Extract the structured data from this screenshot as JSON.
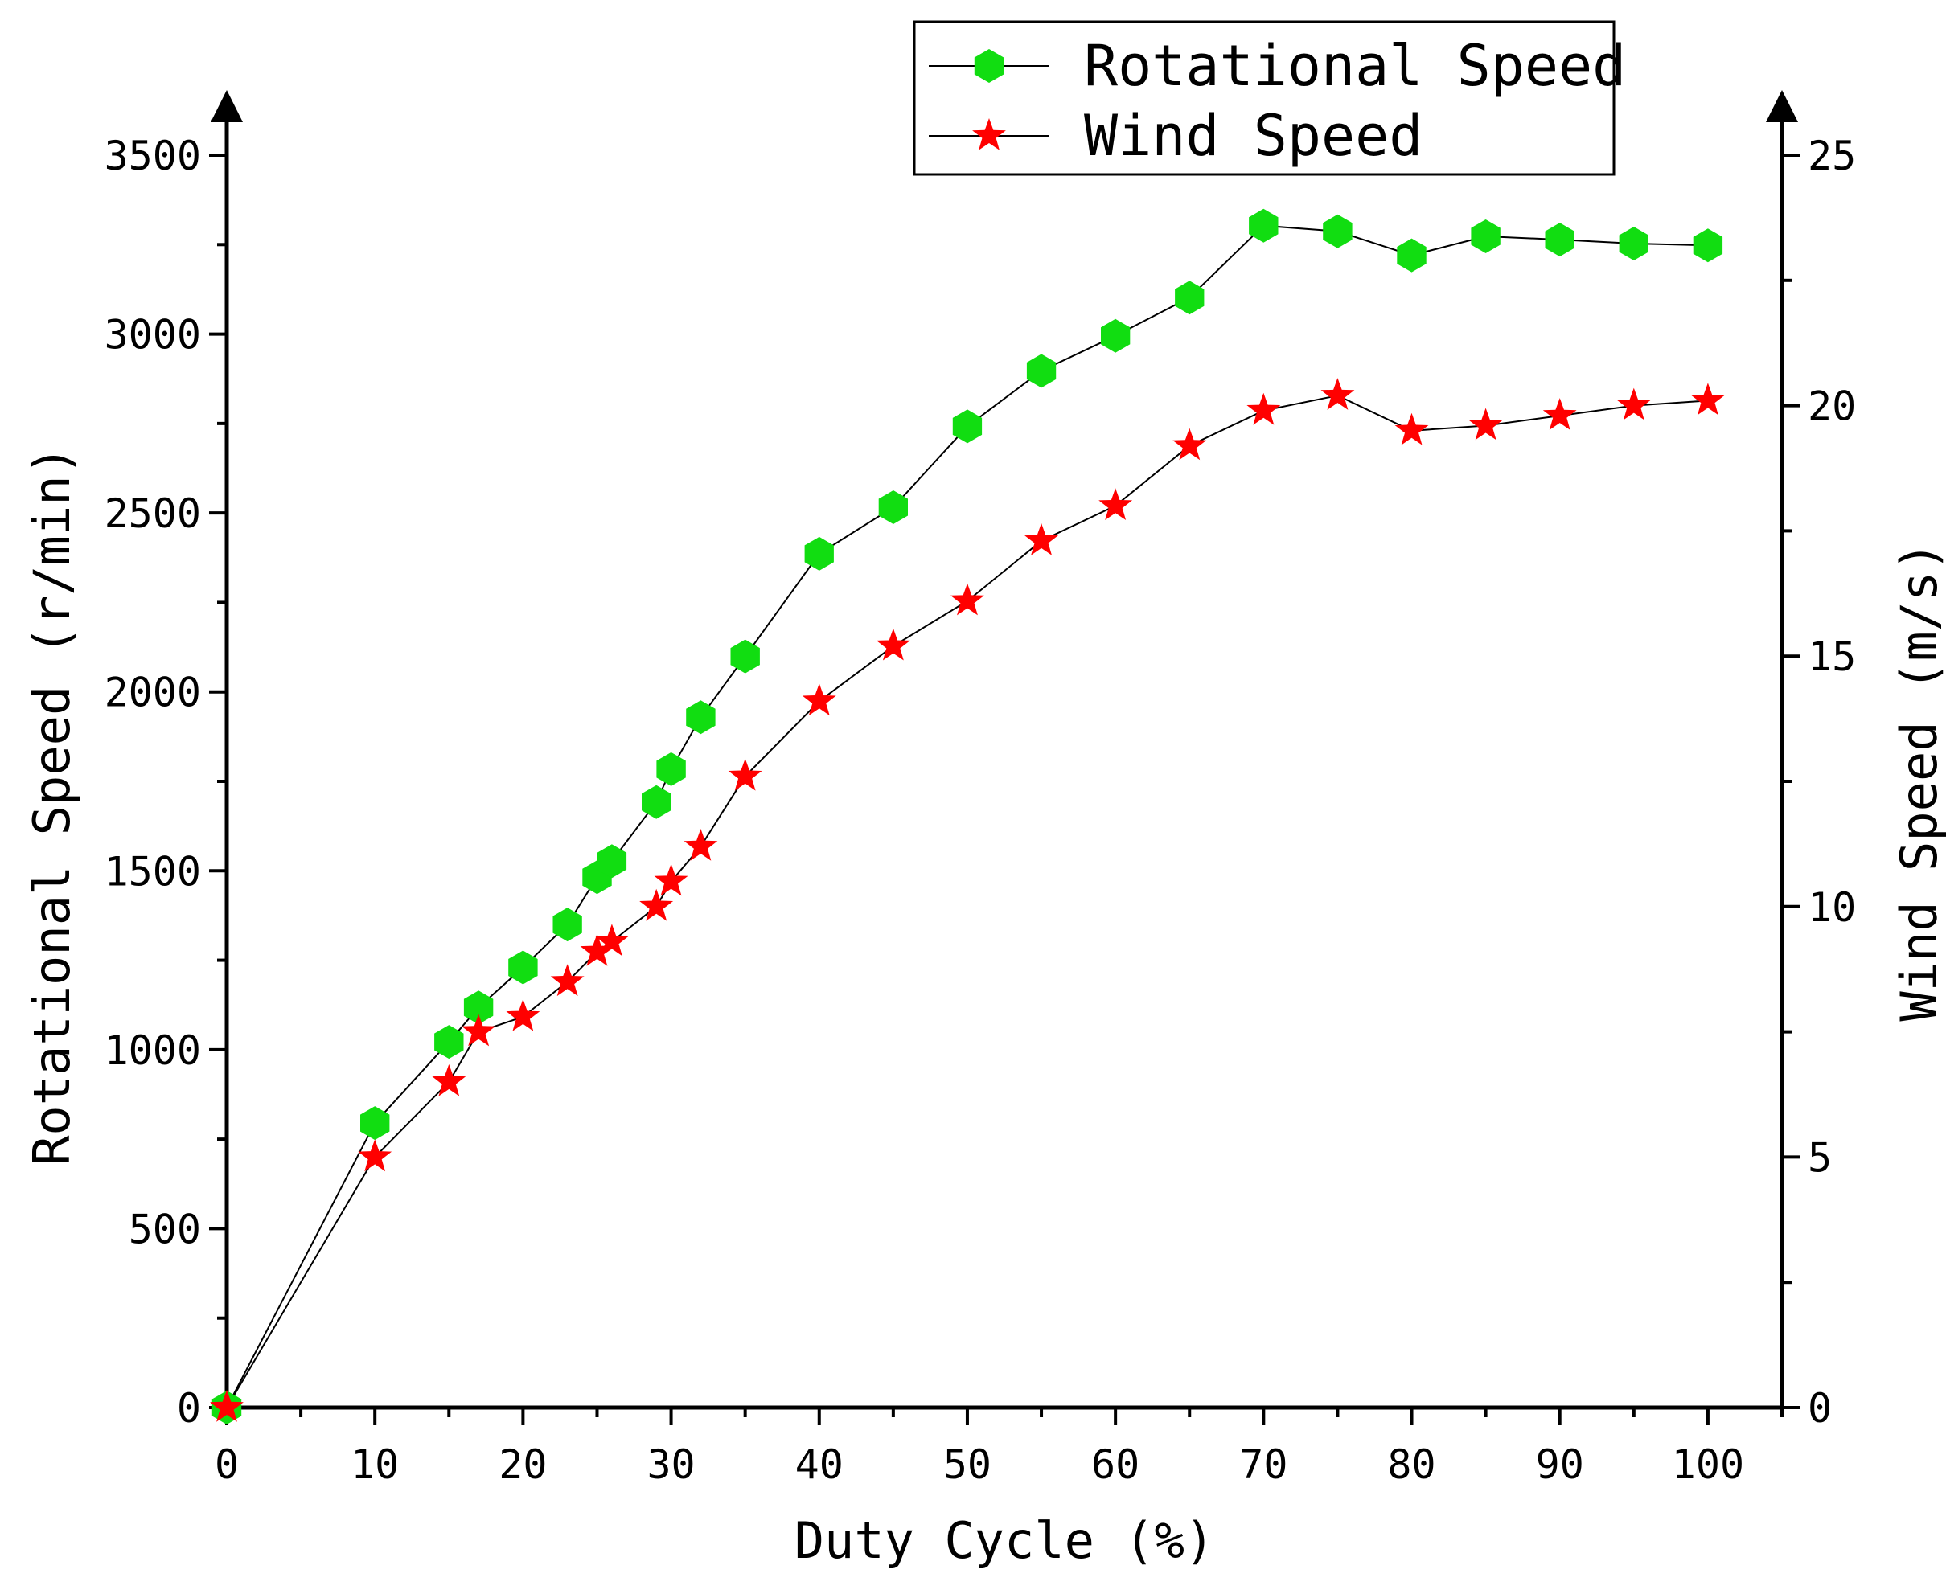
{
  "chart_data": {
    "type": "line",
    "title": "",
    "xlabel": "Duty Cycle (%)",
    "ylabel": "Rotational Speed (r/min)",
    "ylabel_right": "Wind Speed (m/s)",
    "xlim": [
      0,
      105
    ],
    "ylim": [
      0,
      3500
    ],
    "ylim_right": [
      0,
      25
    ],
    "x_ticks": [
      "0",
      "10",
      "20",
      "30",
      "40",
      "50",
      "60",
      "70",
      "80",
      "90",
      "100"
    ],
    "y_ticks": [
      "0",
      "500",
      "1000",
      "1500",
      "2000",
      "2500",
      "3000",
      "3500"
    ],
    "y_ticks_right": [
      "0",
      "5",
      "10",
      "15",
      "20",
      "25"
    ],
    "grid": false,
    "legend_position": "top-right",
    "x": [
      0,
      10,
      15,
      17,
      20,
      23,
      25,
      26,
      29,
      30,
      32,
      35,
      40,
      45,
      50,
      55,
      60,
      65,
      70,
      75,
      80,
      85,
      90,
      95,
      100
    ],
    "series": [
      {
        "name": "Rotational Speed",
        "axis": "left",
        "marker": "hexagon",
        "color": "#11dd11",
        "values": [
          0,
          795,
          1022,
          1118,
          1230,
          1350,
          1482,
          1527,
          1692,
          1784,
          1929,
          2099,
          2386,
          2516,
          2742,
          2897,
          2995,
          3102,
          3303,
          3287,
          3220,
          3273,
          3264,
          3253,
          3248
        ]
      },
      {
        "name": "Wind Speed",
        "axis": "right",
        "marker": "star",
        "color": "#ff0000",
        "values": [
          0,
          5.0,
          6.5,
          7.5,
          7.8,
          8.5,
          9.1,
          9.3,
          10.0,
          10.5,
          11.2,
          12.6,
          14.1,
          15.2,
          16.1,
          17.3,
          18.0,
          19.2,
          19.9,
          20.2,
          19.5,
          19.6,
          19.8,
          20.0,
          20.1
        ]
      }
    ]
  }
}
